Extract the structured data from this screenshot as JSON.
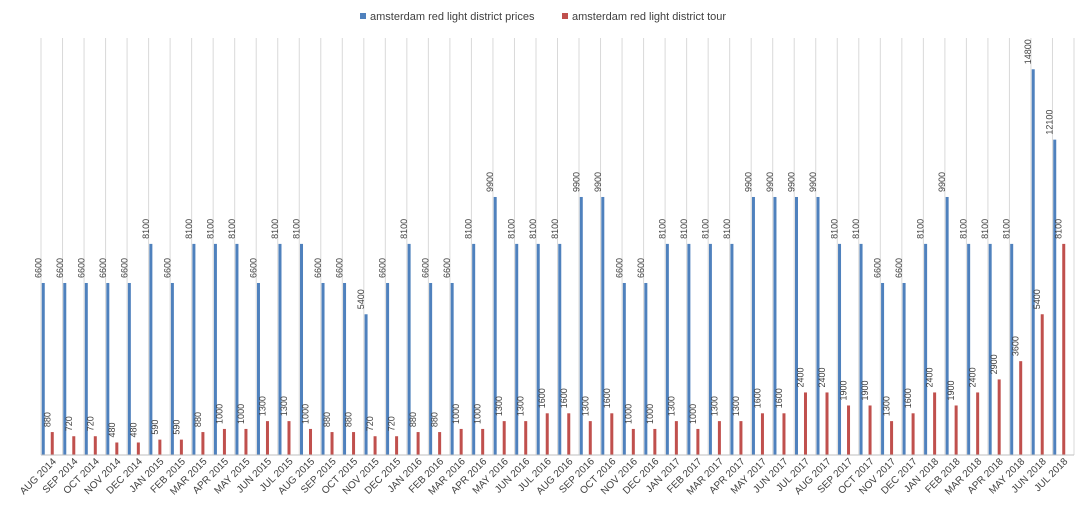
{
  "chart_data": {
    "type": "bar",
    "title": "",
    "xlabel": "",
    "ylabel": "",
    "ylim": [
      0,
      16000
    ],
    "grid": "vertical",
    "legend_position": "top",
    "categories": [
      "AUG 2014",
      "SEP 2014",
      "OCT 2014",
      "NOV 2014",
      "DEC 2014",
      "JAN 2015",
      "FEB 2015",
      "MAR 2015",
      "APR 2015",
      "MAY 2015",
      "JUN 2015",
      "JUL 2015",
      "AUG 2015",
      "SEP 2015",
      "OCT 2015",
      "NOV 2015",
      "DEC 2015",
      "JAN 2016",
      "FEB 2016",
      "MAR 2016",
      "APR 2016",
      "MAY 2016",
      "JUN 2016",
      "JUL 2016",
      "AUG 2016",
      "SEP 2016",
      "OCT 2016",
      "NOV 2016",
      "DEC 2016",
      "JAN 2017",
      "FEB 2017",
      "MAR 2017",
      "APR 2017",
      "MAY 2017",
      "JUN 2017",
      "JUL 2017",
      "AUG 2017",
      "SEP 2017",
      "OCT 2017",
      "NOV 2017",
      "DEC 2017",
      "JAN 2018",
      "FEB 2018",
      "MAR 2018",
      "APR 2018",
      "MAY 2018",
      "JUN 2018",
      "JUL 2018"
    ],
    "series": [
      {
        "name": "amsterdam red light district prices",
        "color": "#4f81bd",
        "values": [
          6600,
          6600,
          6600,
          6600,
          6600,
          8100,
          6600,
          8100,
          8100,
          8100,
          6600,
          8100,
          8100,
          6600,
          6600,
          5400,
          6600,
          8100,
          6600,
          6600,
          8100,
          9900,
          8100,
          8100,
          8100,
          9900,
          9900,
          6600,
          6600,
          8100,
          8100,
          8100,
          8100,
          9900,
          9900,
          9900,
          9900,
          8100,
          8100,
          6600,
          6600,
          8100,
          9900,
          8100,
          8100,
          8100,
          14800,
          12100
        ]
      },
      {
        "name": "amsterdam red light district tour",
        "color": "#c0504d",
        "values": [
          880,
          720,
          720,
          480,
          480,
          590,
          590,
          880,
          1000,
          1000,
          1300,
          1300,
          1000,
          880,
          880,
          720,
          720,
          880,
          880,
          1000,
          1000,
          1300,
          1300,
          1600,
          1600,
          1300,
          1600,
          1000,
          1000,
          1300,
          1000,
          1300,
          1300,
          1600,
          1600,
          2400,
          2400,
          1900,
          1900,
          1300,
          1600,
          2400,
          1900,
          2400,
          2900,
          3600,
          5400,
          8100
        ]
      }
    ]
  }
}
